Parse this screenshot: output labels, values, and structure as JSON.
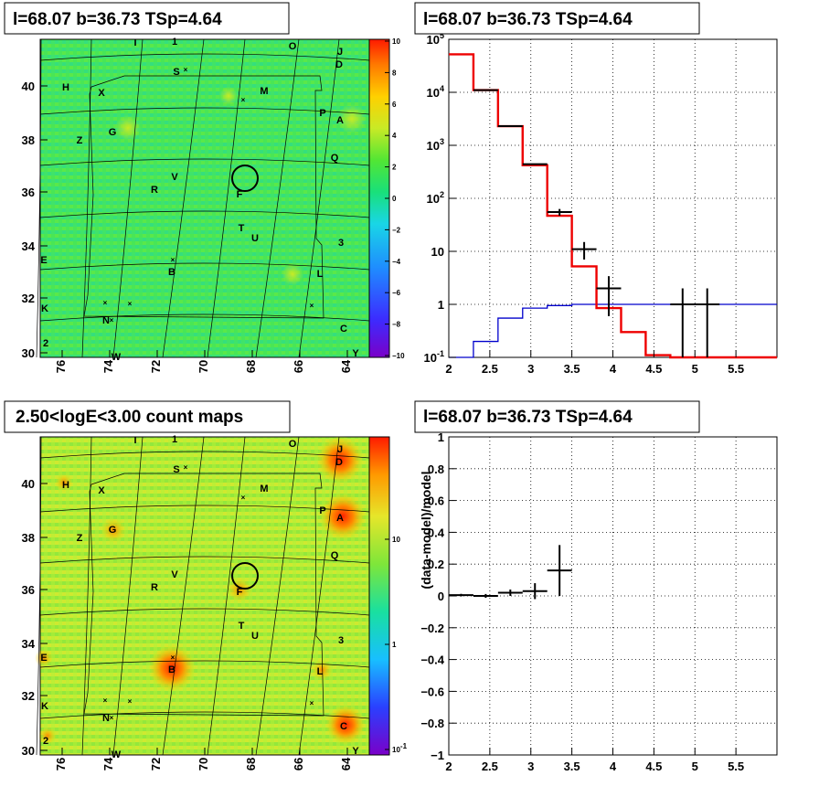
{
  "panels": {
    "tl": {
      "title": "l=68.07 b=36.73 TSp=4.64"
    },
    "tr": {
      "title": "l=68.07 b=36.73 TSp=4.64"
    },
    "bl": {
      "title": "2.50<logE<3.00 count maps"
    },
    "br": {
      "title": "l=68.07 b=36.73 TSp=4.64"
    }
  },
  "colors": {
    "data": "#000000",
    "model": "#ee0000",
    "background_model": "#0000cc",
    "grid": "#000000"
  },
  "map_axes": {
    "x_ticks": [
      "76",
      "74",
      "72",
      "70",
      "68",
      "66",
      "64"
    ],
    "y_ticks": [
      "40",
      "38",
      "36",
      "34",
      "32",
      "30"
    ]
  },
  "residual_colorbar": {
    "ticks": [
      "10",
      "8",
      "6",
      "4",
      "2",
      "0",
      "−2",
      "−4",
      "−6",
      "−8",
      "−10"
    ]
  },
  "count_colorbar": {
    "ticks": [
      {
        "base": "10",
        "exp": ""
      },
      {
        "base": "1",
        "exp": ""
      },
      {
        "base": "10",
        "exp": "-1"
      }
    ]
  },
  "sources": [
    "I",
    "1",
    "O",
    "J",
    "D",
    "S",
    "H",
    "X",
    "M",
    "P",
    "A",
    "G",
    "Z",
    "Q",
    "V",
    "R",
    "F",
    "T",
    "U",
    "3",
    "E",
    "B",
    "L",
    "K",
    "N",
    "C",
    "2",
    "W",
    "Y"
  ],
  "chart_data": [
    {
      "type": "line",
      "panel": "tr",
      "title": "l=68.07 b=36.73 TSp=4.64",
      "xlabel": "",
      "ylabel": "",
      "xlim": [
        2,
        6
      ],
      "ylim": [
        0.1,
        100000
      ],
      "yscale": "log",
      "x_ticks": [
        "2",
        "2.5",
        "3",
        "3.5",
        "4",
        "4.5",
        "5",
        "5.5"
      ],
      "y_ticks": [
        {
          "base": "10",
          "exp": "5"
        },
        {
          "base": "10",
          "exp": "4"
        },
        {
          "base": "10",
          "exp": "3"
        },
        {
          "base": "10",
          "exp": "2"
        },
        {
          "base": "10",
          "exp": ""
        },
        {
          "base": "1",
          "exp": ""
        },
        {
          "base": "10",
          "exp": "-1"
        }
      ],
      "grid": true,
      "series": [
        {
          "role": "model-step",
          "bin_edges": [
            2.0,
            2.3,
            2.6,
            2.9,
            3.2,
            3.5,
            3.8,
            4.1,
            4.4,
            4.7,
            5.0,
            5.3,
            5.6,
            6.0
          ],
          "values": [
            52000,
            11000,
            2300,
            420,
            47,
            5.2,
            0.85,
            0.3,
            0.11,
            0.1,
            0.1,
            0.1,
            0.1
          ]
        },
        {
          "role": "background-step",
          "bin_edges": [
            2.0,
            2.3,
            2.6,
            2.9,
            3.2,
            3.5,
            3.8,
            4.1,
            4.4,
            4.7,
            5.0,
            5.3,
            5.6,
            6.0
          ],
          "values": [
            0.1,
            0.2,
            0.55,
            0.85,
            0.95,
            1.0,
            1.0,
            1.0,
            1.0,
            1.0,
            1.0,
            1.0,
            1.0
          ]
        },
        {
          "role": "data-points",
          "x": [
            2.45,
            2.75,
            3.05,
            3.35,
            3.65,
            3.95,
            4.85,
            5.15
          ],
          "y": [
            11000,
            2300,
            440,
            55,
            11,
            2,
            1,
            1
          ],
          "xerr": [
            0.15,
            0.15,
            0.15,
            0.15,
            0.15,
            0.15,
            0.15,
            0.15
          ],
          "ylo": [
            11000,
            2300,
            440,
            47,
            7,
            0.6,
            0.1,
            0.1
          ],
          "yhi": [
            11000,
            2300,
            440,
            63,
            15,
            3.4,
            2,
            2
          ]
        }
      ]
    },
    {
      "type": "scatter",
      "panel": "br",
      "title": "l=68.07 b=36.73 TSp=4.64",
      "xlabel": "",
      "ylabel": "(data-model)/model",
      "xlim": [
        2,
        6
      ],
      "ylim": [
        -1,
        1
      ],
      "x_ticks": [
        "2",
        "2.5",
        "3",
        "3.5",
        "4",
        "4.5",
        "5",
        "5.5"
      ],
      "y_ticks": [
        "1",
        "0.8",
        "0.6",
        "0.4",
        "0.2",
        "0",
        "−0.2",
        "−0.4",
        "−0.6",
        "−0.8",
        "−1"
      ],
      "grid": true,
      "series": [
        {
          "role": "data-points",
          "x": [
            2.15,
            2.45,
            2.75,
            3.05,
            3.35
          ],
          "y": [
            0.005,
            0.0,
            0.02,
            0.03,
            0.16
          ],
          "xerr": [
            0.15,
            0.15,
            0.15,
            0.15,
            0.15
          ],
          "yerr": [
            0.008,
            0.012,
            0.02,
            0.05,
            0.16
          ]
        }
      ]
    }
  ]
}
